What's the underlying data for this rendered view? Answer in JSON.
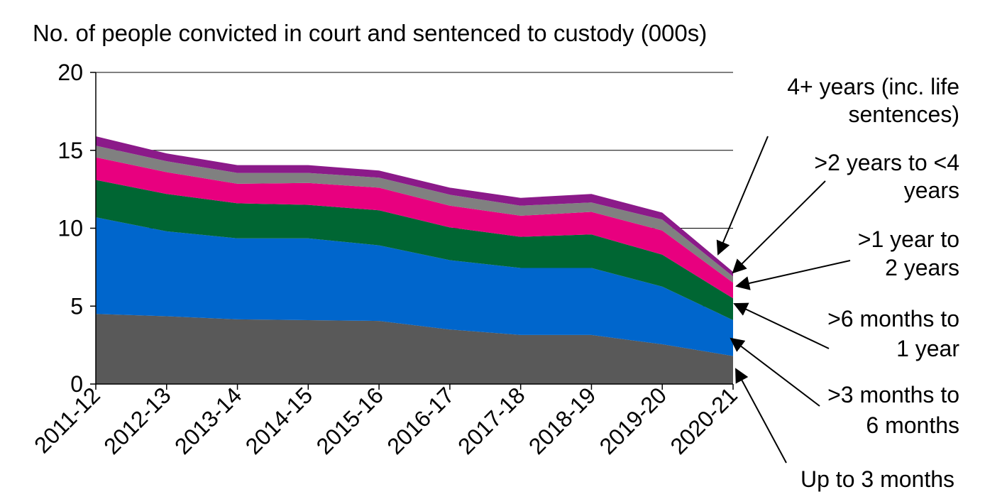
{
  "chart_data": {
    "type": "area",
    "stacked": true,
    "ylabel": "No. of people convicted in court and sentenced to custody (000s)",
    "ylim": [
      0,
      20
    ],
    "yticks": [
      0,
      5,
      10,
      15,
      20
    ],
    "grid": "horizontal",
    "legend": "right-side annotations with arrows",
    "categories": [
      "2011-12",
      "2012-13",
      "2013-14",
      "2014-15",
      "2015-16",
      "2016-17",
      "2017-18",
      "2018-19",
      "2019-20",
      "2020-21"
    ],
    "series": [
      {
        "name": "Up to 3 months",
        "color": "#595959",
        "values": [
          4.5,
          4.35,
          4.15,
          4.1,
          4.05,
          3.5,
          3.15,
          3.15,
          2.55,
          1.8
        ]
      },
      {
        "name": ">3 months to 6 months",
        "color": "#0066CC",
        "values": [
          6.2,
          5.45,
          5.2,
          5.25,
          4.85,
          4.45,
          4.3,
          4.3,
          3.7,
          2.3
        ]
      },
      {
        "name": ">6 months to 1 year",
        "color": "#006633",
        "values": [
          2.4,
          2.4,
          2.25,
          2.15,
          2.25,
          2.1,
          2.0,
          2.15,
          2.05,
          1.4
        ]
      },
      {
        "name": ">1 year to 2 years",
        "color": "#E8007F",
        "values": [
          1.45,
          1.4,
          1.25,
          1.4,
          1.45,
          1.4,
          1.35,
          1.45,
          1.55,
          1.0
        ]
      },
      {
        "name": ">2 years to <4 years",
        "color": "#808080",
        "values": [
          0.75,
          0.7,
          0.7,
          0.65,
          0.65,
          0.7,
          0.65,
          0.6,
          0.7,
          0.4
        ]
      },
      {
        "name": "4+ years (inc. life sentences)",
        "color": "#8B1A89",
        "values": [
          0.6,
          0.5,
          0.5,
          0.5,
          0.45,
          0.45,
          0.5,
          0.55,
          0.45,
          0.3
        ]
      }
    ]
  },
  "annotations": [
    {
      "lines": [
        "4+ years (inc. life",
        "sentences)"
      ]
    },
    {
      "lines": [
        ">2 years to <4",
        "years"
      ]
    },
    {
      "lines": [
        ">1 year to",
        "2 years"
      ]
    },
    {
      "lines": [
        ">6 months to",
        "1 year"
      ]
    },
    {
      "lines": [
        ">3 months to",
        "6 months"
      ]
    },
    {
      "lines": [
        "Up to 3 months"
      ]
    }
  ]
}
